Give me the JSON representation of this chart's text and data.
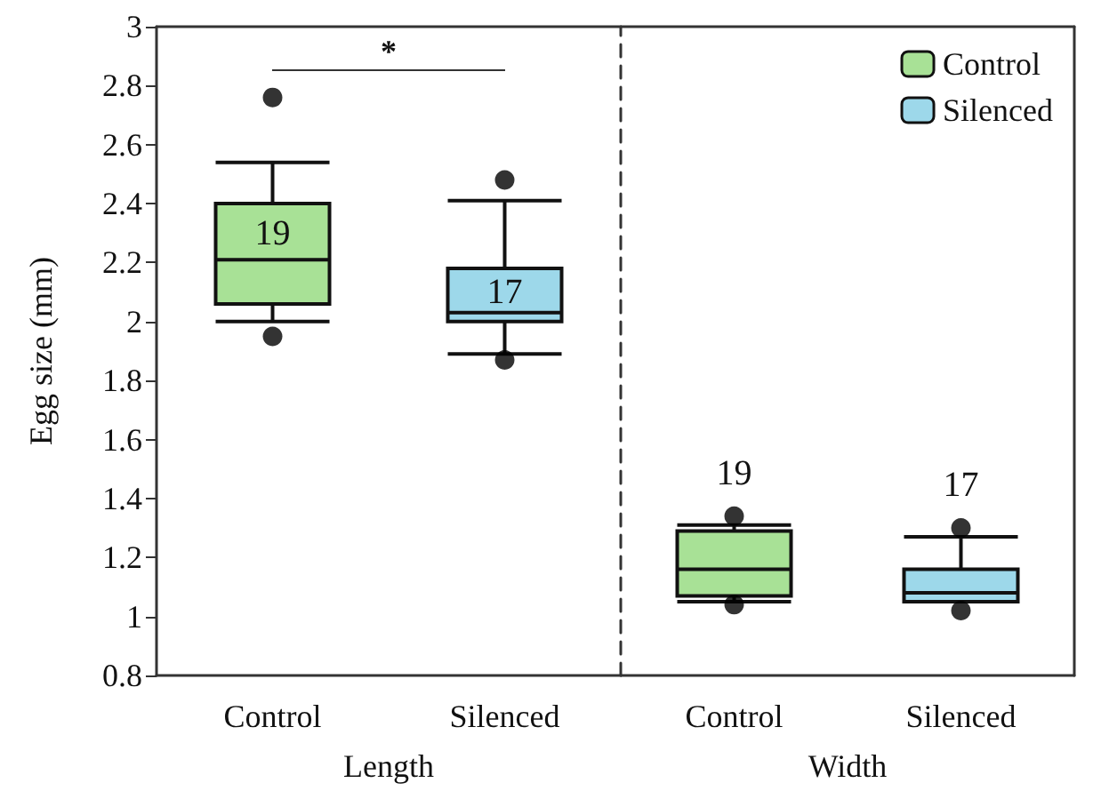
{
  "chart_data": [
    {
      "type": "box",
      "xlabel": "Length",
      "ylabel": "Egg size (mm)",
      "categories": [
        "Control",
        "Silenced"
      ],
      "ylim": [
        0.8,
        3
      ],
      "yticks": [
        0.8,
        1,
        1.2,
        1.4,
        1.6,
        1.8,
        2,
        2.2,
        2.4,
        2.6,
        2.8,
        3
      ],
      "grid": false,
      "legend": false,
      "series": [
        {
          "color": "#a8e196",
          "x": [
            "Control"
          ],
          "boxes": [
            {
              "low": 2.0,
              "q1": 2.06,
              "median": 2.21,
              "q3": 2.4,
              "high": 2.54,
              "outliers": [
                2.76,
                1.95
              ]
            }
          ]
        },
        {
          "color": "#9dd8ea",
          "x": [
            "Silenced"
          ],
          "boxes": [
            {
              "low": 1.89,
              "q1": 2.0,
              "median": 2.03,
              "q3": 2.18,
              "high": 2.41,
              "outliers": [
                2.48,
                1.87
              ]
            }
          ]
        }
      ],
      "annotations": [
        "19",
        "17",
        "*"
      ]
    },
    {
      "type": "box",
      "xlabel": "Width",
      "categories": [
        "Control",
        "Silenced"
      ],
      "ylim": [
        0.8,
        3
      ],
      "tick_labels": "x",
      "grid": false,
      "legend": "top right",
      "series": [
        {
          "name": "Control",
          "color": "#a8e196",
          "x": [
            "Control"
          ],
          "boxes": [
            {
              "low": 1.05,
              "q1": 1.07,
              "median": 1.16,
              "q3": 1.29,
              "high": 1.31,
              "outliers": [
                1.34,
                1.04
              ]
            }
          ]
        },
        {
          "name": "Silenced",
          "color": "#9dd8ea",
          "x": [
            "Silenced"
          ],
          "boxes": [
            {
              "low": 1.05,
              "q1": 1.05,
              "median": 1.08,
              "q3": 1.16,
              "high": 1.27,
              "outliers": [
                1.3,
                1.02
              ]
            }
          ]
        }
      ],
      "annotations": [
        "19",
        "17"
      ]
    }
  ]
}
